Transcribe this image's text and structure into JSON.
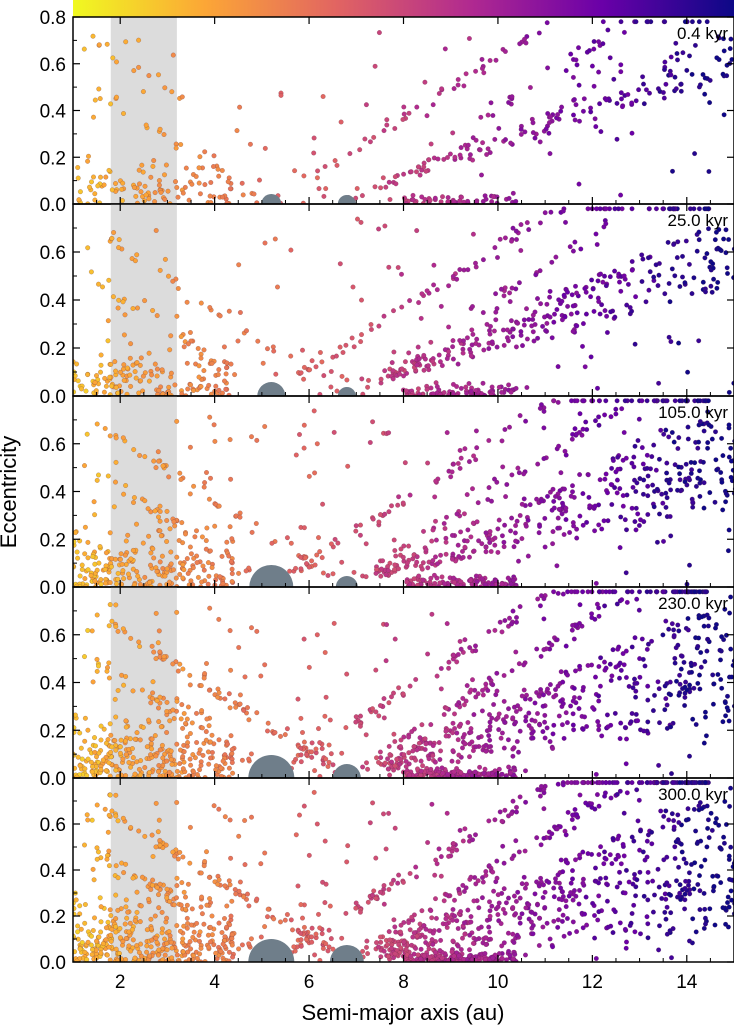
{
  "chart_data": {
    "type": "scatter",
    "xlabel": "Semi-major axis (au)",
    "ylabel": "Eccentricity",
    "xlim": [
      1,
      15
    ],
    "ylim": [
      0,
      0.8
    ],
    "x_ticks": [
      2,
      4,
      6,
      8,
      10,
      12,
      14
    ],
    "x_tick_labels": [
      "2",
      "4",
      "6",
      "8",
      "10",
      "12",
      "14"
    ],
    "y_ticks": [
      0.0,
      0.2,
      0.4,
      0.6,
      0.8
    ],
    "y_tick_labels": [
      "0.0",
      "0.2",
      "0.4",
      "0.6",
      "0.8"
    ],
    "shaded_band": {
      "x_start": 1.8,
      "x_end": 3.2,
      "color": "#dcdcdc"
    },
    "colorbar": {
      "colors": [
        "#f0f921",
        "#fca636",
        "#e16462",
        "#b12a90",
        "#6a00a8",
        "#0d0887"
      ],
      "position": "top"
    },
    "point_color_range": "plasma (yellow at small a, purple at large a)",
    "panels": [
      {
        "label": "0.4 kyr",
        "planets": [
          {
            "a": 5.2,
            "size": 10
          },
          {
            "a": 6.8,
            "size": 9
          }
        ]
      },
      {
        "label": "25.0 kyr",
        "planets": [
          {
            "a": 5.2,
            "size": 14
          },
          {
            "a": 6.8,
            "size": 9
          }
        ]
      },
      {
        "label": "105.0 kyr",
        "planets": [
          {
            "a": 5.2,
            "size": 22
          },
          {
            "a": 6.8,
            "size": 11
          }
        ]
      },
      {
        "label": "230.0 kyr",
        "planets": [
          {
            "a": 5.2,
            "size": 23
          },
          {
            "a": 6.8,
            "size": 14
          }
        ]
      },
      {
        "label": "300.0 kyr",
        "planets": [
          {
            "a": 5.2,
            "size": 23
          },
          {
            "a": 6.8,
            "size": 17
          }
        ]
      }
    ],
    "grid": false
  }
}
